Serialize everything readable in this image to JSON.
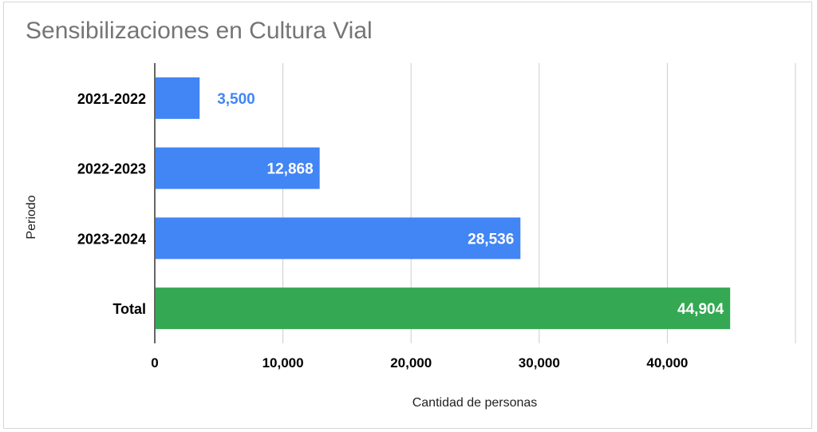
{
  "chart_data": {
    "type": "bar",
    "orientation": "horizontal",
    "title": "Sensibilizaciones en Cultura Vial",
    "xlabel": "Cantidad de personas",
    "ylabel": "Periodo",
    "categories": [
      "2021-2022",
      "2022-2023",
      "2023-2024",
      "Total"
    ],
    "values": [
      3500,
      12868,
      28536,
      44904
    ],
    "value_labels": [
      "3,500",
      "12,868",
      "28,536",
      "44,904"
    ],
    "bar_colors": [
      "#4285f4",
      "#4285f4",
      "#4285f4",
      "#34a853"
    ],
    "xlim": [
      0,
      50000
    ],
    "xticks": [
      0,
      10000,
      20000,
      30000,
      40000
    ],
    "xtick_labels": [
      "0",
      "10,000",
      "20,000",
      "30,000",
      "40,000"
    ],
    "grid": true,
    "legend": "none"
  }
}
